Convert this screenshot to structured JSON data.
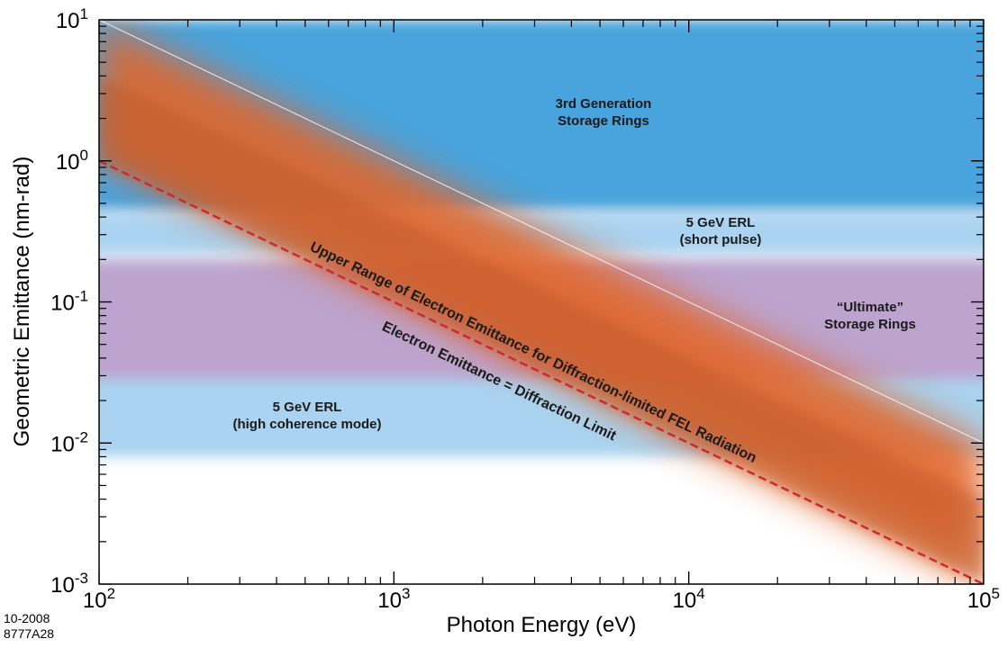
{
  "chart_data": {
    "type": "line",
    "title": "",
    "xlabel": "Photon Energy  (eV)",
    "ylabel": "Geometric Emittance  (nm-rad)",
    "xscale": "log",
    "yscale": "log",
    "xlim": [
      100,
      100000
    ],
    "ylim": [
      0.001,
      10
    ],
    "x_ticks": [
      {
        "base": "10",
        "exp": "2"
      },
      {
        "base": "10",
        "exp": "3"
      },
      {
        "base": "10",
        "exp": "4"
      },
      {
        "base": "10",
        "exp": "5"
      }
    ],
    "y_ticks": [
      {
        "base": "10",
        "exp": "-3"
      },
      {
        "base": "10",
        "exp": "-2"
      },
      {
        "base": "10",
        "exp": "-1"
      },
      {
        "base": "10",
        "exp": "0"
      },
      {
        "base": "10",
        "exp": "1"
      }
    ],
    "regions": [
      {
        "lines": [
          "3rd Generation",
          "Storage Rings"
        ],
        "y_range": [
          0.45,
          10
        ],
        "color": "#4aa3dc"
      },
      {
        "lines": [
          "5 GeV ERL",
          "(short pulse)"
        ],
        "y_range": [
          0.22,
          0.42
        ],
        "color": "#a9d3f0"
      },
      {
        "lines": [
          "“Ultimate”",
          "Storage Rings"
        ],
        "y_range": [
          0.028,
          0.2
        ],
        "color": "#bca4cf"
      },
      {
        "lines": [
          "5 GeV ERL",
          "(high coherence mode)"
        ],
        "y_range": [
          0.008,
          0.028
        ],
        "color": "#a9d3f0"
      }
    ],
    "series": [
      {
        "name": "Electron Emittance = Diffraction Limit",
        "x": [
          100,
          100000
        ],
        "y": [
          1,
          0.001
        ],
        "color": "#cc2a2a"
      },
      {
        "name": "Upper Range of Electron Emittance for Diffraction-limited FEL Radiation",
        "x": [
          100,
          100000
        ],
        "y": [
          10,
          0.01
        ],
        "color": "#ffffff"
      }
    ],
    "grid": false,
    "legend": "none"
  },
  "footnote": {
    "date": "10-2008",
    "code": "8777A28"
  }
}
